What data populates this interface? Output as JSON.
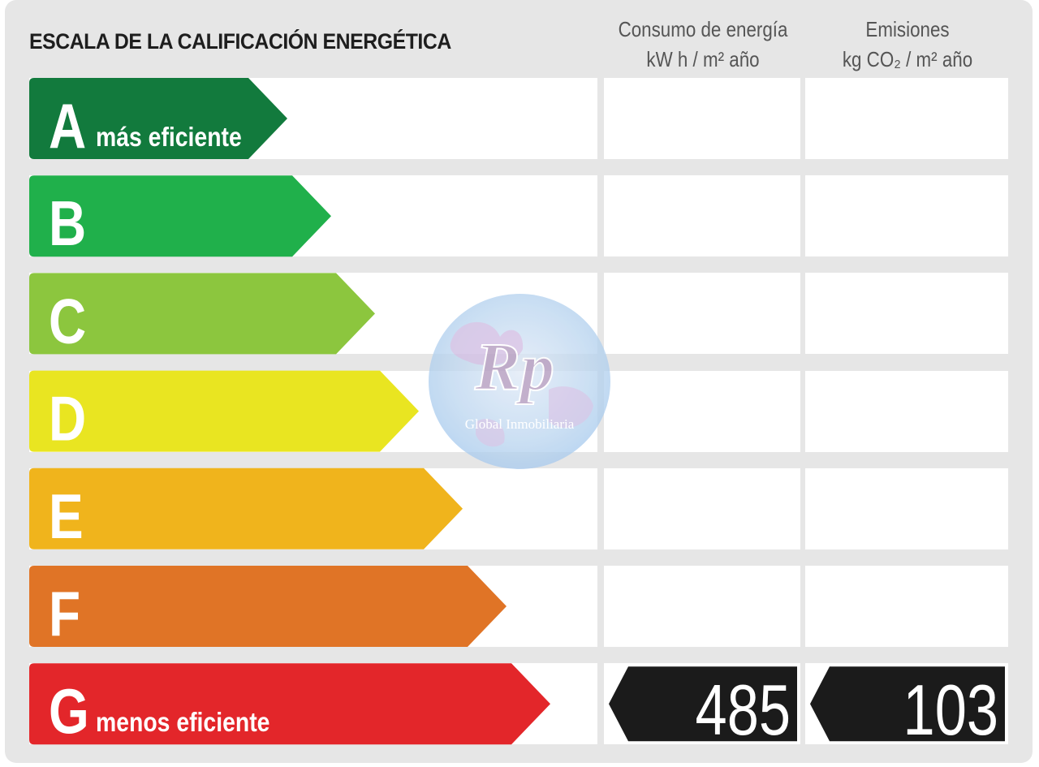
{
  "title": "ESCALA DE LA CALIFICACIÓN ENERGÉTICA",
  "columns": {
    "energy": {
      "line1": "Consumo de energía",
      "line2": "kW h / m² año"
    },
    "emissions": {
      "line1": "Emisiones",
      "line2": "kg CO₂ / m² año"
    }
  },
  "bands": [
    {
      "letter": "A",
      "sublabel": "más eficiente",
      "color": "#127a3d"
    },
    {
      "letter": "B",
      "sublabel": "",
      "color": "#20b04b"
    },
    {
      "letter": "C",
      "sublabel": "",
      "color": "#8cc63e"
    },
    {
      "letter": "D",
      "sublabel": "",
      "color": "#e9e521"
    },
    {
      "letter": "E",
      "sublabel": "",
      "color": "#f0b41c"
    },
    {
      "letter": "F",
      "sublabel": "",
      "color": "#e07426"
    },
    {
      "letter": "G",
      "sublabel": "menos eficiente",
      "color": "#e3262a"
    }
  ],
  "rating": {
    "band": "G",
    "energy_value": "485",
    "emissions_value": "103",
    "indicator_color": "#1b1b1b"
  },
  "watermark": {
    "logo_text": "Rp",
    "caption": "Global Inmobiliaria"
  }
}
